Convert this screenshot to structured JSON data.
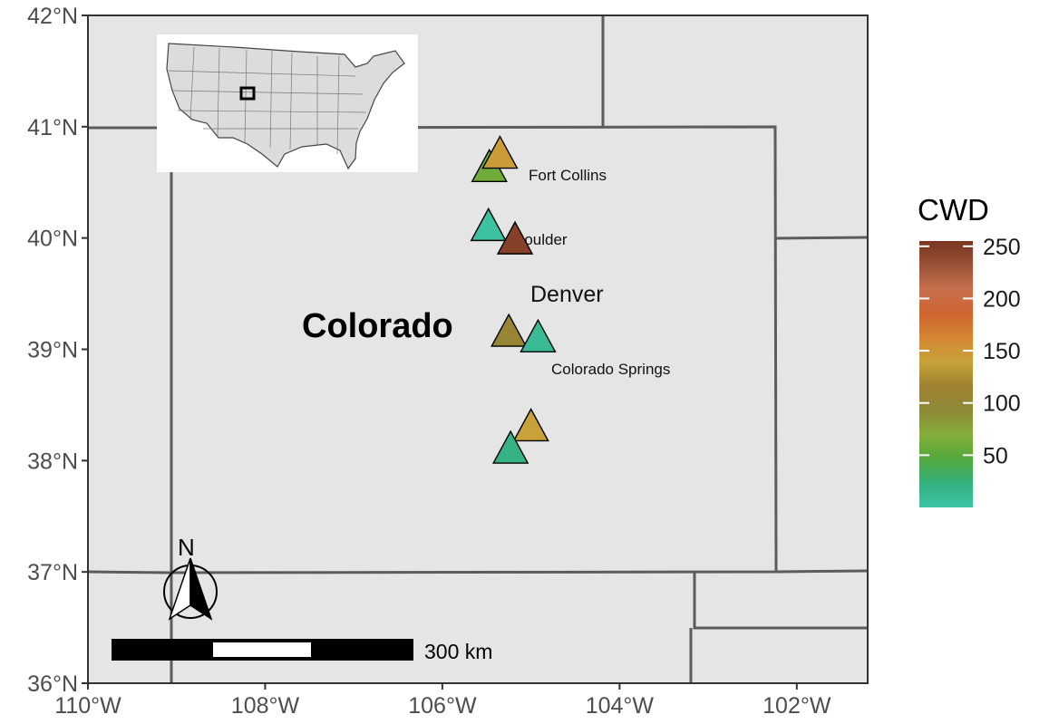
{
  "map": {
    "state_label": "Colorado",
    "lat_ticks": [
      "42°N",
      "41°N",
      "40°N",
      "39°N",
      "38°N",
      "37°N",
      "36°N"
    ],
    "lon_ticks": [
      "110°W",
      "108°W",
      "106°W",
      "104°W",
      "102°W"
    ],
    "xlim": [
      -110,
      -101.2
    ],
    "ylim": [
      36,
      42
    ],
    "background": "#e5e5e5",
    "border_color": "#5c5c5c"
  },
  "cities": [
    {
      "name": "Fort Collins",
      "lon": -105.08,
      "lat": 40.58
    },
    {
      "name": "Boulder",
      "lon": -105.27,
      "lat": 40.0
    },
    {
      "name": "Denver",
      "lon": -104.99,
      "lat": 39.5
    },
    {
      "name": "Colorado Springs",
      "lon": -104.82,
      "lat": 38.83
    }
  ],
  "chart_data": {
    "type": "scatter",
    "marker": "triangle",
    "points": [
      {
        "lon": -105.47,
        "lat": 40.63,
        "cwd": 60
      },
      {
        "lon": -105.35,
        "lat": 40.75,
        "cwd": 145
      },
      {
        "lon": -105.48,
        "lat": 40.1,
        "cwd": 5
      },
      {
        "lon": -105.18,
        "lat": 39.98,
        "cwd": 245
      },
      {
        "lon": -105.25,
        "lat": 39.15,
        "cwd": 105
      },
      {
        "lon": -104.92,
        "lat": 39.1,
        "cwd": 10
      },
      {
        "lon": -105.0,
        "lat": 38.3,
        "cwd": 140
      },
      {
        "lon": -105.23,
        "lat": 38.1,
        "cwd": 20
      }
    ]
  },
  "legend": {
    "title": "CWD",
    "ticks": [
      "250",
      "200",
      "150",
      "100",
      "50"
    ],
    "range": [
      0,
      255
    ],
    "colors": [
      "#3fc4a8",
      "#34b07e",
      "#53a83d",
      "#85ad3a",
      "#8d8a35",
      "#9e8132",
      "#c7a238",
      "#d48732",
      "#d06430",
      "#c7704e",
      "#9a5236",
      "#7a3420"
    ]
  },
  "scale_bar": {
    "label": "300 km"
  },
  "north_arrow": {
    "label": "N"
  },
  "inset": {
    "marker": "square",
    "caption": ""
  }
}
